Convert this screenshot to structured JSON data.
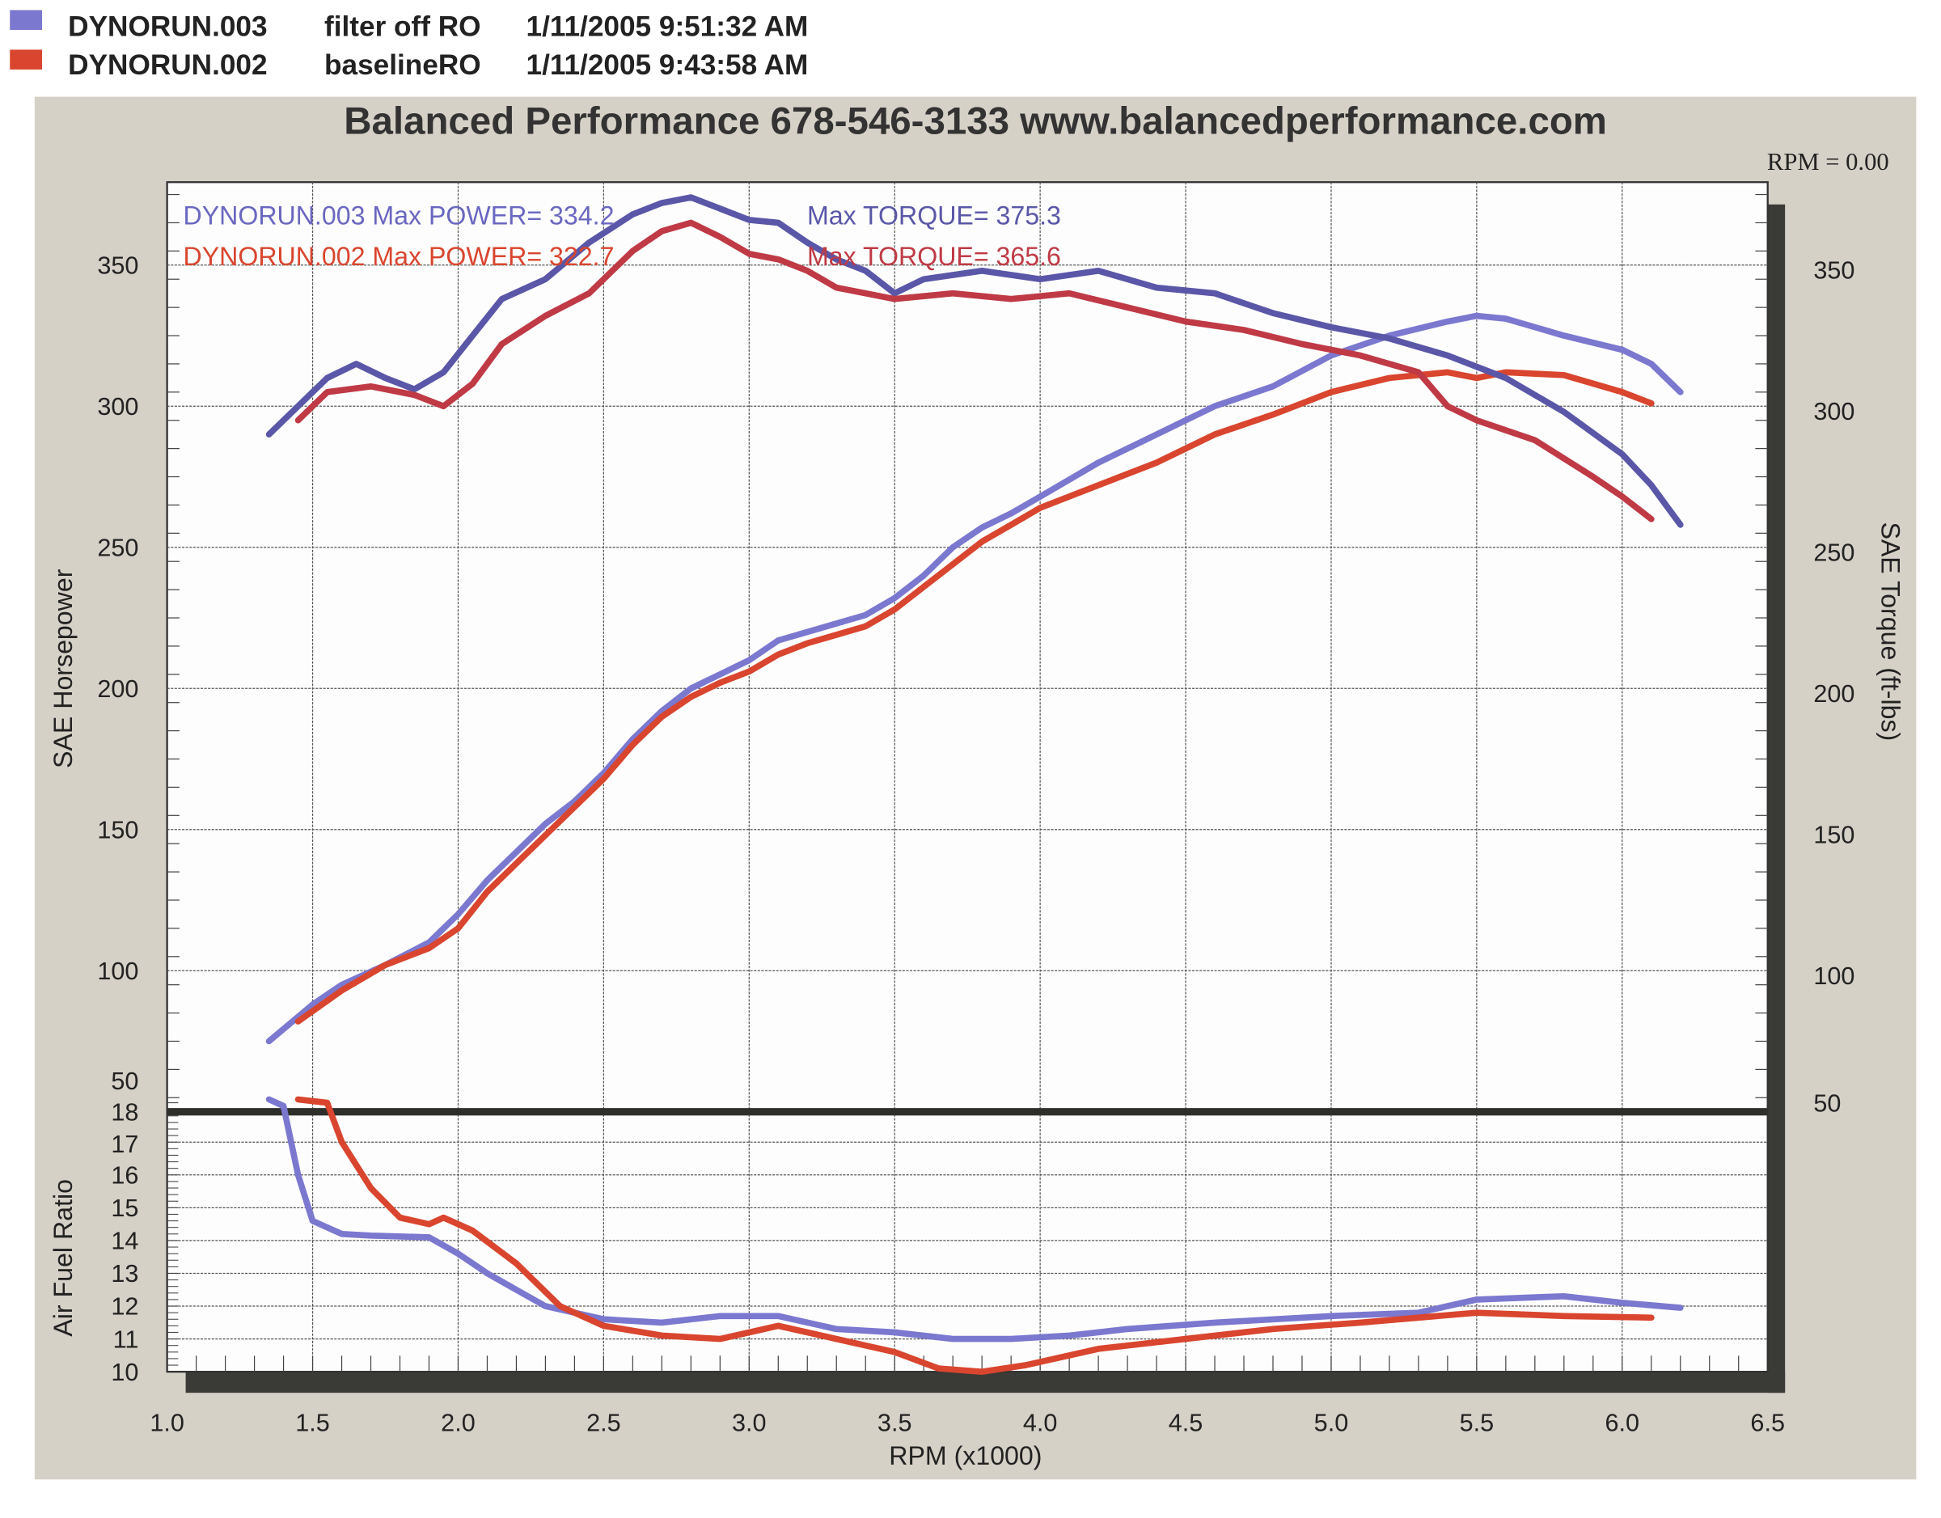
{
  "legend": [
    {
      "run": "DYNORUN.003",
      "description": "filter off RO",
      "timestamp": "1/11/2005 9:51:32 AM",
      "color": "#7b78d0"
    },
    {
      "run": "DYNORUN.002",
      "description": "baselineRO",
      "timestamp": "1/11/2005 9:43:58 AM",
      "color": "#d9452e"
    }
  ],
  "title": "Balanced Performance 678-546-3133 www.balancedperformance.com",
  "rpm_readout": "RPM = 0.00",
  "annotations": {
    "run003_power": "DYNORUN.003  Max POWER= 334.2",
    "run003_torque": "Max TORQUE= 375.3",
    "run002_power": "DYNORUN.002  Max POWER= 322.7",
    "run002_torque": "Max TORQUE= 365.6"
  },
  "colors": {
    "background_panel": "#d5d1c7",
    "axis_shadow": "#3a3a36",
    "power_003": "#7b78d0",
    "torque_003": "#5a57a8",
    "power_002": "#d9452e",
    "torque_002": "#bf3a45"
  },
  "chart_data": [
    {
      "type": "line",
      "xlabel": "RPM (x1000)",
      "ylabel": "SAE Horsepower",
      "y2label": "SAE Torque (ft-lbs)",
      "xlim": [
        1.0,
        6.5
      ],
      "ylim": [
        50,
        379
      ],
      "x_ticks": [
        "1.0",
        "1.5",
        "2.0",
        "2.5",
        "3.0",
        "3.5",
        "4.0",
        "4.5",
        "5.0",
        "5.5",
        "6.0",
        "6.5"
      ],
      "y_ticks": [
        "50",
        "100",
        "150",
        "200",
        "250",
        "300",
        "350"
      ],
      "y2_ticks": [
        "50",
        "100",
        "150",
        "200",
        "250",
        "300",
        "350"
      ],
      "grid": true,
      "series": [
        {
          "name": "DYNORUN.003",
          "measure": "power",
          "points": [
            [
              1.35,
              75
            ],
            [
              1.5,
              88
            ],
            [
              1.6,
              95
            ],
            [
              1.75,
              102
            ],
            [
              1.9,
              110
            ],
            [
              2.0,
              120
            ],
            [
              2.1,
              132
            ],
            [
              2.2,
              142
            ],
            [
              2.3,
              152
            ],
            [
              2.4,
              160
            ],
            [
              2.5,
              170
            ],
            [
              2.6,
              182
            ],
            [
              2.7,
              192
            ],
            [
              2.8,
              200
            ],
            [
              2.9,
              205
            ],
            [
              3.0,
              210
            ],
            [
              3.1,
              217
            ],
            [
              3.2,
              220
            ],
            [
              3.4,
              226
            ],
            [
              3.5,
              232
            ],
            [
              3.6,
              240
            ],
            [
              3.7,
              250
            ],
            [
              3.8,
              257
            ],
            [
              3.9,
              262
            ],
            [
              4.0,
              268
            ],
            [
              4.2,
              280
            ],
            [
              4.4,
              290
            ],
            [
              4.5,
              295
            ],
            [
              4.6,
              300
            ],
            [
              4.8,
              307
            ],
            [
              5.0,
              318
            ],
            [
              5.2,
              325
            ],
            [
              5.4,
              330
            ],
            [
              5.5,
              332
            ],
            [
              5.6,
              331
            ],
            [
              5.8,
              325
            ],
            [
              6.0,
              320
            ],
            [
              6.1,
              315
            ],
            [
              6.2,
              305
            ]
          ]
        },
        {
          "name": "DYNORUN.002",
          "measure": "power",
          "points": [
            [
              1.45,
              82
            ],
            [
              1.6,
              93
            ],
            [
              1.75,
              102
            ],
            [
              1.9,
              108
            ],
            [
              2.0,
              115
            ],
            [
              2.1,
              128
            ],
            [
              2.2,
              138
            ],
            [
              2.3,
              148
            ],
            [
              2.4,
              158
            ],
            [
              2.5,
              168
            ],
            [
              2.6,
              180
            ],
            [
              2.7,
              190
            ],
            [
              2.8,
              197
            ],
            [
              2.9,
              202
            ],
            [
              3.0,
              206
            ],
            [
              3.1,
              212
            ],
            [
              3.2,
              216
            ],
            [
              3.4,
              222
            ],
            [
              3.5,
              228
            ],
            [
              3.6,
              236
            ],
            [
              3.7,
              244
            ],
            [
              3.8,
              252
            ],
            [
              3.9,
              258
            ],
            [
              4.0,
              264
            ],
            [
              4.2,
              272
            ],
            [
              4.4,
              280
            ],
            [
              4.5,
              285
            ],
            [
              4.6,
              290
            ],
            [
              4.8,
              297
            ],
            [
              5.0,
              305
            ],
            [
              5.2,
              310
            ],
            [
              5.4,
              312
            ],
            [
              5.5,
              310
            ],
            [
              5.6,
              312
            ],
            [
              5.8,
              311
            ],
            [
              6.0,
              305
            ],
            [
              6.1,
              301
            ]
          ]
        },
        {
          "name": "DYNORUN.003",
          "measure": "torque",
          "points": [
            [
              1.35,
              290
            ],
            [
              1.45,
              300
            ],
            [
              1.55,
              310
            ],
            [
              1.65,
              315
            ],
            [
              1.75,
              310
            ],
            [
              1.85,
              306
            ],
            [
              1.95,
              312
            ],
            [
              2.05,
              325
            ],
            [
              2.15,
              338
            ],
            [
              2.3,
              345
            ],
            [
              2.45,
              358
            ],
            [
              2.6,
              368
            ],
            [
              2.7,
              372
            ],
            [
              2.8,
              374
            ],
            [
              2.9,
              370
            ],
            [
              3.0,
              366
            ],
            [
              3.1,
              365
            ],
            [
              3.2,
              358
            ],
            [
              3.3,
              352
            ],
            [
              3.4,
              348
            ],
            [
              3.5,
              340
            ],
            [
              3.6,
              345
            ],
            [
              3.8,
              348
            ],
            [
              4.0,
              345
            ],
            [
              4.2,
              348
            ],
            [
              4.4,
              342
            ],
            [
              4.6,
              340
            ],
            [
              4.8,
              333
            ],
            [
              5.0,
              328
            ],
            [
              5.2,
              324
            ],
            [
              5.4,
              318
            ],
            [
              5.6,
              310
            ],
            [
              5.8,
              298
            ],
            [
              6.0,
              283
            ],
            [
              6.1,
              272
            ],
            [
              6.2,
              258
            ]
          ]
        },
        {
          "name": "DYNORUN.002",
          "measure": "torque",
          "points": [
            [
              1.45,
              295
            ],
            [
              1.55,
              305
            ],
            [
              1.7,
              307
            ],
            [
              1.85,
              304
            ],
            [
              1.95,
              300
            ],
            [
              2.05,
              308
            ],
            [
              2.15,
              322
            ],
            [
              2.3,
              332
            ],
            [
              2.45,
              340
            ],
            [
              2.6,
              355
            ],
            [
              2.7,
              362
            ],
            [
              2.8,
              365
            ],
            [
              2.9,
              360
            ],
            [
              3.0,
              354
            ],
            [
              3.1,
              352
            ],
            [
              3.2,
              348
            ],
            [
              3.3,
              342
            ],
            [
              3.5,
              338
            ],
            [
              3.7,
              340
            ],
            [
              3.9,
              338
            ],
            [
              4.1,
              340
            ],
            [
              4.3,
              335
            ],
            [
              4.5,
              330
            ],
            [
              4.7,
              327
            ],
            [
              4.9,
              322
            ],
            [
              5.1,
              318
            ],
            [
              5.3,
              312
            ],
            [
              5.4,
              300
            ],
            [
              5.5,
              295
            ],
            [
              5.7,
              288
            ],
            [
              5.9,
              275
            ],
            [
              6.0,
              268
            ],
            [
              6.1,
              260
            ]
          ]
        }
      ]
    },
    {
      "type": "line",
      "ylabel": "Air Fuel Ratio",
      "xlim": [
        1.0,
        6.5
      ],
      "ylim": [
        10,
        18.4
      ],
      "y_ticks": [
        "10",
        "11",
        "12",
        "13",
        "14",
        "15",
        "16",
        "17",
        "18"
      ],
      "grid": true,
      "series": [
        {
          "name": "DYNORUN.003",
          "points": [
            [
              1.35,
              18.3
            ],
            [
              1.4,
              18.1
            ],
            [
              1.45,
              16
            ],
            [
              1.5,
              14.6
            ],
            [
              1.6,
              14.2
            ],
            [
              1.7,
              14.15
            ],
            [
              1.9,
              14.1
            ],
            [
              2.0,
              13.6
            ],
            [
              2.1,
              13
            ],
            [
              2.2,
              12.5
            ],
            [
              2.3,
              12
            ],
            [
              2.5,
              11.6
            ],
            [
              2.7,
              11.5
            ],
            [
              2.9,
              11.7
            ],
            [
              3.1,
              11.7
            ],
            [
              3.3,
              11.3
            ],
            [
              3.5,
              11.2
            ],
            [
              3.7,
              11.0
            ],
            [
              3.9,
              11.0
            ],
            [
              4.1,
              11.1
            ],
            [
              4.3,
              11.3
            ],
            [
              4.6,
              11.5
            ],
            [
              5.0,
              11.7
            ],
            [
              5.3,
              11.8
            ],
            [
              5.5,
              12.2
            ],
            [
              5.8,
              12.3
            ],
            [
              6.0,
              12.1
            ],
            [
              6.2,
              11.95
            ]
          ]
        },
        {
          "name": "DYNORUN.002",
          "points": [
            [
              1.45,
              18.3
            ],
            [
              1.55,
              18.2
            ],
            [
              1.6,
              17
            ],
            [
              1.7,
              15.6
            ],
            [
              1.8,
              14.7
            ],
            [
              1.9,
              14.5
            ],
            [
              1.95,
              14.7
            ],
            [
              2.05,
              14.3
            ],
            [
              2.2,
              13.3
            ],
            [
              2.35,
              12
            ],
            [
              2.5,
              11.4
            ],
            [
              2.7,
              11.1
            ],
            [
              2.9,
              11.0
            ],
            [
              3.0,
              11.2
            ],
            [
              3.1,
              11.4
            ],
            [
              3.3,
              11.0
            ],
            [
              3.5,
              10.6
            ],
            [
              3.65,
              10.1
            ],
            [
              3.8,
              10.0
            ],
            [
              3.95,
              10.2
            ],
            [
              4.2,
              10.7
            ],
            [
              4.5,
              11.0
            ],
            [
              4.8,
              11.3
            ],
            [
              5.1,
              11.5
            ],
            [
              5.5,
              11.8
            ],
            [
              5.8,
              11.7
            ],
            [
              6.1,
              11.65
            ]
          ]
        }
      ]
    }
  ]
}
